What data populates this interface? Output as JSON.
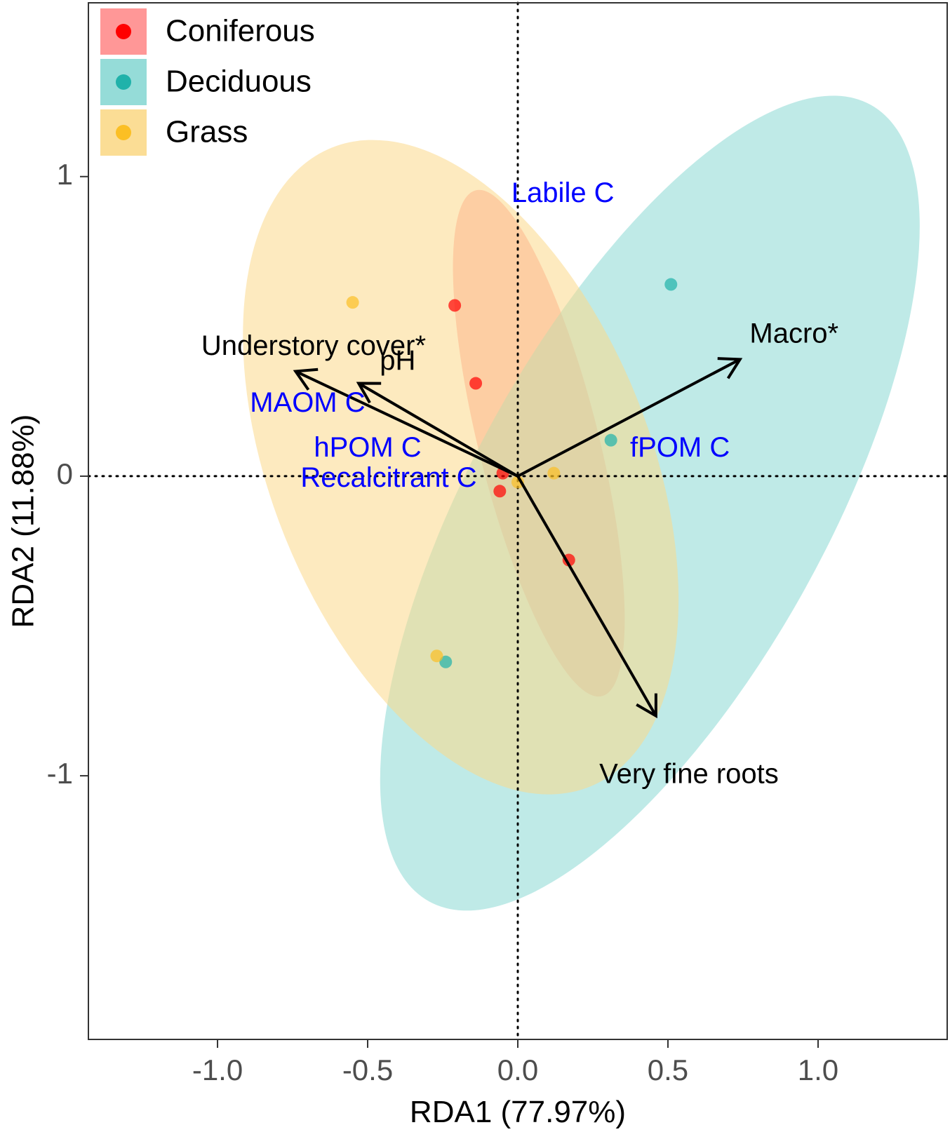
{
  "chart_data": {
    "type": "scatter",
    "xlabel": "RDA1 (77.97%)",
    "ylabel": "RDA2 (11.88%)",
    "xlim": [
      -1.43,
      1.43
    ],
    "ylim": [
      -1.88,
      1.58
    ],
    "x_ticks": [
      {
        "value": -1.0,
        "label": "-1.0"
      },
      {
        "value": -0.5,
        "label": "-0.5"
      },
      {
        "value": 0.0,
        "label": "0.0"
      },
      {
        "value": 0.5,
        "label": "0.5"
      },
      {
        "value": 1.0,
        "label": "1.0"
      }
    ],
    "y_ticks": [
      {
        "value": 1,
        "label": "1"
      },
      {
        "value": 0,
        "label": "0"
      },
      {
        "value": -1,
        "label": "-1"
      }
    ],
    "grid": false,
    "reference_lines": {
      "x": 0,
      "y": 0,
      "style": "dotted"
    },
    "legend_position": "top-left",
    "colors": {
      "Coniferous": "#ff0000",
      "Deciduous": "#20b2aa",
      "Grass": "#fbbf24",
      "response_label": "#0000ff",
      "environment_label": "#000000"
    },
    "series": [
      {
        "name": "Coniferous",
        "color": "#ff0000",
        "fill": "#ff8c8c",
        "points": [
          [
            -0.21,
            0.57
          ],
          [
            -0.14,
            0.31
          ],
          [
            -0.05,
            0.01
          ],
          [
            -0.06,
            -0.05
          ],
          [
            0.17,
            -0.28
          ]
        ],
        "ellipse": {
          "center": [
            0.07,
            0.11
          ],
          "rx": 0.2,
          "ry": 0.87,
          "angle_deg": -14
        }
      },
      {
        "name": "Deciduous",
        "color": "#20b2aa",
        "fill": "#8ad8d4",
        "points": [
          [
            0.51,
            0.64
          ],
          [
            0.31,
            0.12
          ],
          [
            -0.24,
            -0.62
          ]
        ],
        "ellipse": {
          "center": [
            0.44,
            -0.09
          ],
          "rx": 0.59,
          "ry": 1.52,
          "angle_deg": 29
        }
      },
      {
        "name": "Grass",
        "color": "#fbbf24",
        "fill": "#fbd98a",
        "points": [
          [
            -0.55,
            0.58
          ],
          [
            0.12,
            0.01
          ],
          [
            0.0,
            -0.02
          ],
          [
            -0.27,
            -0.6
          ]
        ],
        "ellipse": {
          "center": [
            -0.19,
            0.03
          ],
          "rx": 0.63,
          "ry": 1.15,
          "angle_deg": -22
        }
      }
    ],
    "response_labels": [
      {
        "label": "Labile C",
        "x": 0.15,
        "y": 0.94
      },
      {
        "label": "MAOM C",
        "x": -0.7,
        "y": 0.24
      },
      {
        "label": "hPOM C",
        "x": -0.5,
        "y": 0.09
      },
      {
        "label": "Recalcitrant C",
        "x": -0.43,
        "y": -0.01
      },
      {
        "label": "fPOM C",
        "x": 0.54,
        "y": 0.09
      }
    ],
    "env_vectors": [
      {
        "label": "Understory cover*",
        "x": -0.74,
        "y": 0.35,
        "label_x": -0.68,
        "label_y": 0.43
      },
      {
        "label": "pH",
        "x": -0.53,
        "y": 0.31,
        "label_x": -0.4,
        "label_y": 0.38
      },
      {
        "label": "Macro*",
        "x": 0.74,
        "y": 0.39,
        "label_x": 0.92,
        "label_y": 0.47
      },
      {
        "label": "Very fine roots",
        "x": 0.46,
        "y": -0.8,
        "label_x": 0.57,
        "label_y": -1.0
      }
    ]
  }
}
